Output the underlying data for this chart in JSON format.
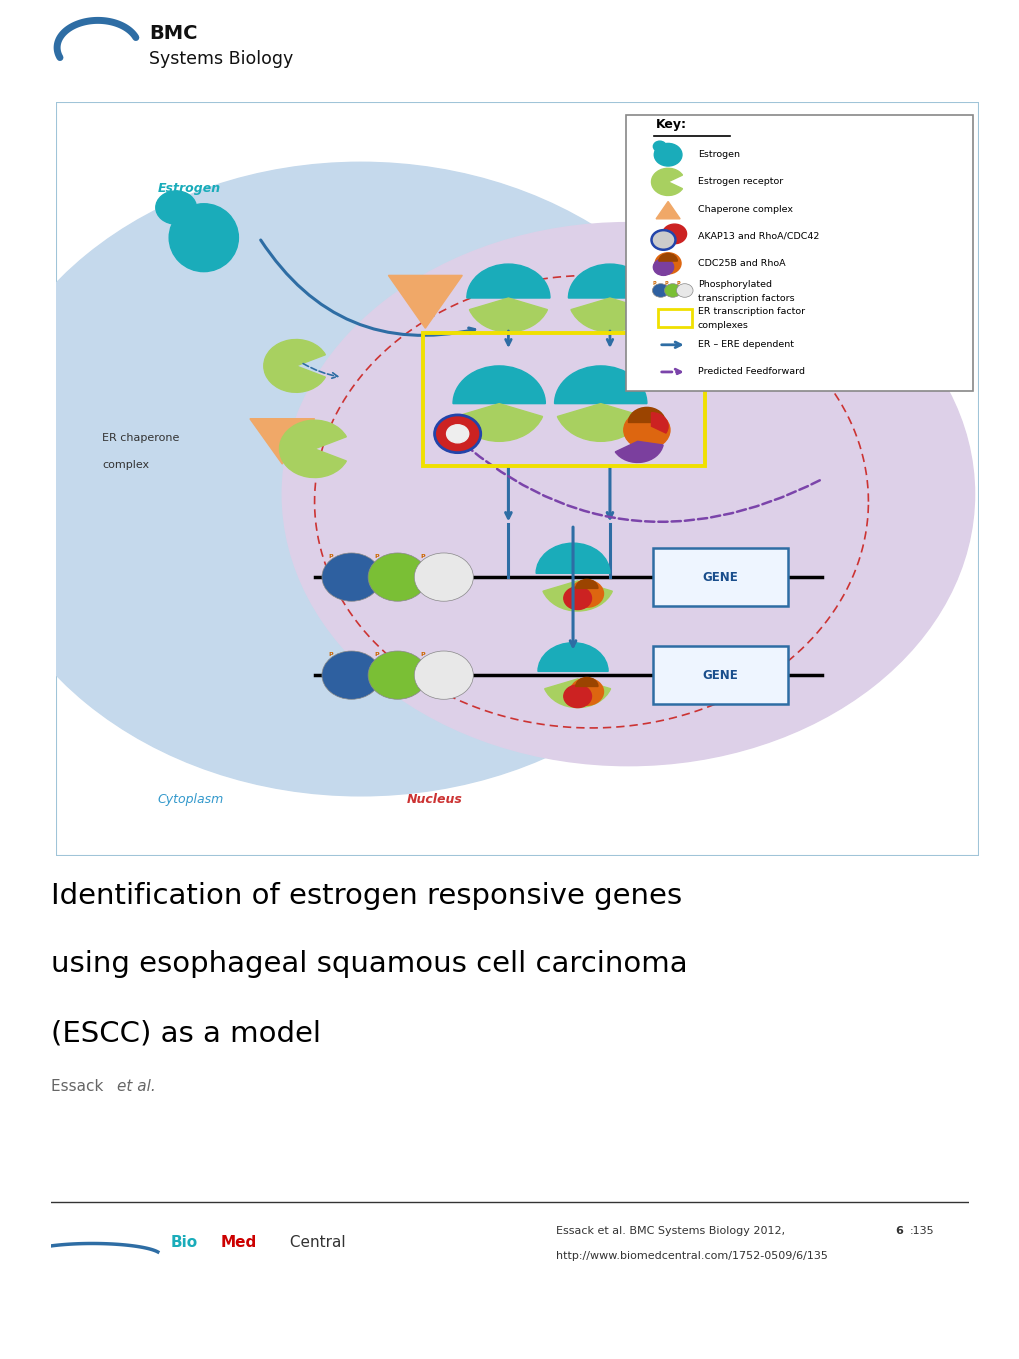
{
  "bg_color": "#ffffff",
  "figure_width": 10.2,
  "figure_height": 13.59,
  "title_line1": "Identification of estrogen responsive genes",
  "title_line2": "using esophageal squamous cell carcinoma",
  "title_line3": "(ESCC) as a model",
  "author_normal": "Essack ",
  "author_italic": "et al.",
  "footer_citation": "Essack et al. BMC Systems Biology 2012, ",
  "footer_vol": "6",
  "footer_issue": ":135",
  "footer_url": "http://www.biomedcentral.com/1752-0509/6/135",
  "journal_bmc": "BMC",
  "journal_sub": "Systems Biology",
  "key_labels": [
    "Estrogen",
    "Estrogen receptor",
    "Chaperone complex",
    "AKAP13 and RhoA/CDC42",
    "CDC25B and RhoA",
    "Phosphorylated\ntranscription factors",
    "ER transcription factor\ncomplexes",
    "ER – ERE dependent",
    "Predicted Feedforward"
  ],
  "cytoplasm_color": "#C5D9EC",
  "nucleus_color": "#DDD0E8",
  "border_color": "#A0C4D8",
  "estrogen_color": "#1AACBA",
  "receptor_color": "#A8D060",
  "chaperone_color": "#F0A868",
  "akap_red": "#CC2222",
  "akap_ring": "#2244AA",
  "cdc_orange": "#DD6610",
  "cdc_dark": "#9B4400",
  "phospho_blue": "#2E60A0",
  "phospho_green": "#7ABF35",
  "phospho_white": "#E8E8E8",
  "yellow_rect": "#F0E000",
  "arrow_blue": "#2E6DA4",
  "arrow_purple": "#7B44AA",
  "gene_border": "#2E6DA4",
  "gene_fill": "#EEF5FF",
  "gene_text": "#1A4E8C",
  "nucleus_dash": "#CC3333",
  "cytoplasm_label": "#3399CC",
  "nucleus_label": "#CC3333",
  "estrogen_label": "#1AACBA",
  "key_bg": "#ffffff",
  "key_border": "#888888"
}
